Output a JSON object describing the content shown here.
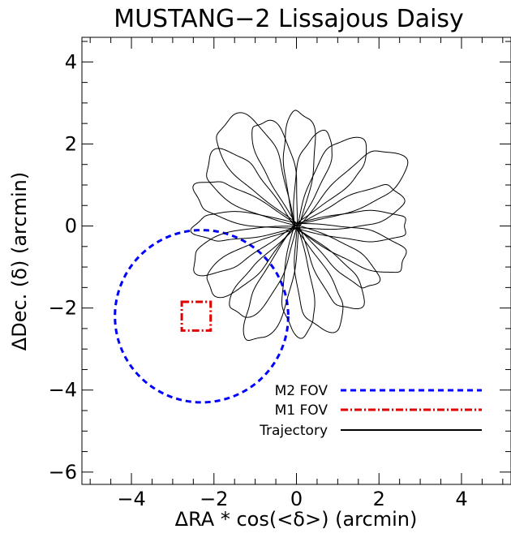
{
  "chart_data": {
    "type": "line",
    "title": "MUSTANG−2 Lissajous Daisy",
    "xlabel": "ΔRA * cos(<δ>) (arcmin)",
    "ylabel": "ΔDec. (δ) (arcmin)",
    "xlim": [
      -5.2,
      5.2
    ],
    "ylim": [
      -6.3,
      4.6
    ],
    "x_ticks": [
      -4,
      -2,
      0,
      2,
      4
    ],
    "x_tick_labels": [
      "−4",
      "−2",
      "0",
      "2",
      "4"
    ],
    "y_ticks": [
      -6,
      -4,
      -2,
      0,
      2,
      4
    ],
    "y_tick_labels": [
      "−6",
      "−4",
      "−2",
      "0",
      "2",
      "4"
    ],
    "x_minor_step": 0.5,
    "y_minor_step": 0.5,
    "grid": false,
    "legend_position": "bottom-right",
    "series": [
      {
        "name": "M2 FOV",
        "shape": "circle",
        "center": [
          -2.3,
          -2.2
        ],
        "radius": 2.1,
        "color": "#0000ff",
        "dash": "dashed"
      },
      {
        "name": "M1 FOV",
        "shape": "rectangle",
        "x_range": [
          -2.78,
          -2.08
        ],
        "y_range": [
          -2.55,
          -1.85
        ],
        "color": "#e00000",
        "dash": "dashdot"
      },
      {
        "name": "Trajectory",
        "shape": "rose",
        "center": [
          0.0,
          0.0
        ],
        "petals": 20,
        "petal_length_range": [
          2.4,
          3.2
        ],
        "color": "#000000",
        "dash": "solid"
      }
    ],
    "legend": [
      {
        "label": "M2 FOV",
        "color": "#0000ff",
        "dash": "dashed"
      },
      {
        "label": "M1 FOV",
        "color": "#e00000",
        "dash": "dashdot"
      },
      {
        "label": "Trajectory",
        "color": "#000000",
        "dash": "solid"
      }
    ]
  }
}
